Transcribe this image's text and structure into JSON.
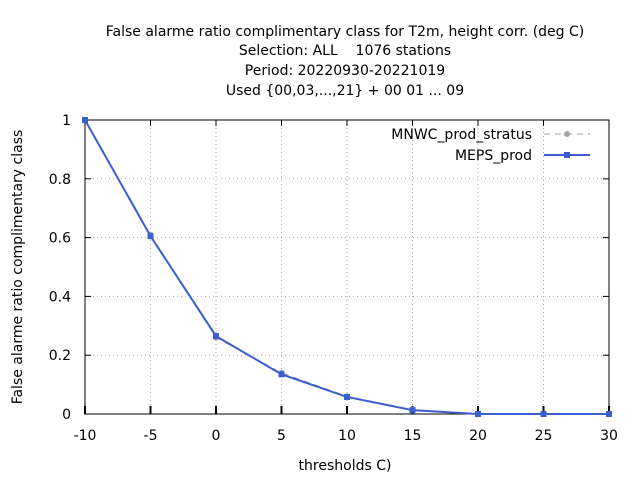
{
  "chart_data": {
    "type": "line",
    "title_lines": [
      "False alarme ratio complimentary class  for T2m, height corr. (deg C)",
      "Selection: ALL    1076 stations",
      "Period: 20220930-20221019",
      "Used {00,03,...,21} + 00 01 ... 09"
    ],
    "xlabel": "thresholds C)",
    "ylabel": "False alarme ratio complimentary class",
    "xlim": [
      -10,
      30
    ],
    "ylim": [
      0,
      1
    ],
    "x_ticks": [
      -10,
      -5,
      0,
      5,
      10,
      15,
      20,
      25,
      30
    ],
    "x_tick_labels": [
      "-10",
      "-5",
      "0",
      "5",
      "10",
      "15",
      "20",
      "25",
      "30"
    ],
    "y_ticks": [
      0,
      0.2,
      0.4,
      0.6,
      0.8,
      1
    ],
    "y_tick_labels": [
      "0",
      "0.2",
      "0.4",
      "0.6",
      "0.8",
      "1"
    ],
    "grid": true,
    "legend_position": "top-right",
    "x": [
      -10,
      -5,
      0,
      5,
      10,
      15,
      20,
      25,
      30
    ],
    "series": [
      {
        "name": "MNWC_prod_stratus",
        "color": "#a0a0a0",
        "style": "dashed",
        "values": [
          1.0,
          0.61,
          0.26,
          0.14,
          0.06,
          0.015,
          0.0,
          0.0,
          0.0
        ]
      },
      {
        "name": "MEPS_prod",
        "color": "#3a5fcd",
        "style": "solid",
        "values": [
          1.0,
          0.605,
          0.265,
          0.135,
          0.058,
          0.013,
          0.0,
          0.0,
          0.0
        ]
      }
    ]
  }
}
